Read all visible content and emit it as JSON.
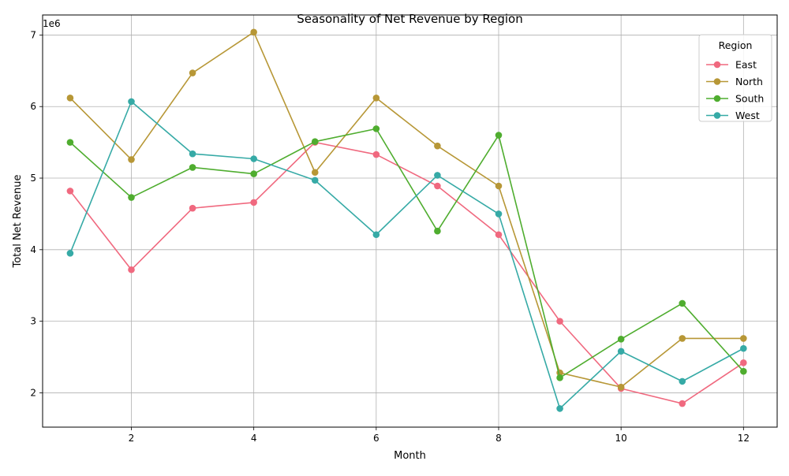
{
  "chart_data": {
    "type": "line",
    "title": "Seasonality of Net Revenue by Region",
    "xlabel": "Month",
    "ylabel": "Total Net Revenue",
    "y_multiplier_label": "1e6",
    "x": [
      1,
      2,
      3,
      4,
      5,
      6,
      7,
      8,
      9,
      10,
      11,
      12
    ],
    "xlim": [
      0.55,
      12.55
    ],
    "ylim": [
      1.52,
      7.28
    ],
    "x_ticks": [
      2,
      4,
      6,
      8,
      10,
      12
    ],
    "y_ticks": [
      2,
      3,
      4,
      5,
      6,
      7
    ],
    "grid": true,
    "legend": {
      "title": "Region",
      "placement": "top-right"
    },
    "series": [
      {
        "name": "East",
        "color": "#f0697f",
        "values": [
          4.82,
          3.72,
          4.58,
          4.66,
          5.5,
          5.33,
          4.89,
          4.21,
          3.0,
          2.06,
          1.85,
          2.42
        ]
      },
      {
        "name": "North",
        "color": "#b79736",
        "values": [
          6.12,
          5.26,
          6.47,
          7.04,
          5.08,
          6.12,
          5.45,
          4.89,
          2.28,
          2.08,
          2.76,
          2.76
        ]
      },
      {
        "name": "South",
        "color": "#4fad2f",
        "values": [
          5.5,
          4.73,
          5.15,
          5.06,
          5.51,
          5.69,
          4.26,
          5.6,
          2.21,
          2.75,
          3.25,
          2.3
        ]
      },
      {
        "name": "West",
        "color": "#36aaa6",
        "values": [
          3.95,
          6.07,
          5.34,
          5.27,
          4.97,
          4.21,
          5.04,
          4.5,
          1.78,
          2.58,
          2.16,
          2.62
        ]
      }
    ]
  }
}
